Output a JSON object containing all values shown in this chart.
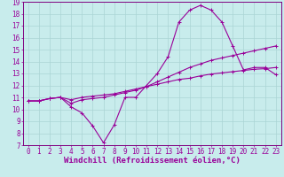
{
  "xlabel": "Windchill (Refroidissement éolien,°C)",
  "background_color": "#c8ecec",
  "line_color": "#990099",
  "grid_color": "#aad4d4",
  "xlim": [
    -0.5,
    23.5
  ],
  "ylim": [
    7,
    19
  ],
  "xticks": [
    0,
    1,
    2,
    3,
    4,
    5,
    6,
    7,
    8,
    9,
    10,
    11,
    12,
    13,
    14,
    15,
    16,
    17,
    18,
    19,
    20,
    21,
    22,
    23
  ],
  "yticks": [
    7,
    8,
    9,
    10,
    11,
    12,
    13,
    14,
    15,
    16,
    17,
    18,
    19
  ],
  "curve1_x": [
    0,
    1,
    2,
    3,
    4,
    5,
    6,
    7,
    8,
    9,
    10,
    11,
    12,
    13,
    14,
    15,
    16,
    17,
    18,
    19,
    20,
    21,
    22,
    23
  ],
  "curve1_y": [
    10.7,
    10.7,
    10.9,
    11.0,
    10.2,
    9.7,
    8.6,
    7.2,
    8.7,
    11.0,
    11.0,
    12.0,
    13.0,
    14.4,
    17.3,
    18.3,
    18.7,
    18.3,
    17.3,
    15.3,
    13.3,
    13.5,
    13.5,
    12.9
  ],
  "curve2_x": [
    0,
    1,
    2,
    3,
    4,
    5,
    6,
    7,
    8,
    9,
    10,
    11,
    12,
    13,
    14,
    15,
    16,
    17,
    18,
    19,
    20,
    21,
    22,
    23
  ],
  "curve2_y": [
    10.7,
    10.7,
    10.9,
    11.0,
    10.5,
    10.8,
    10.9,
    11.0,
    11.2,
    11.4,
    11.6,
    11.9,
    12.3,
    12.7,
    13.1,
    13.5,
    13.8,
    14.1,
    14.3,
    14.5,
    14.7,
    14.9,
    15.1,
    15.3
  ],
  "curve3_x": [
    0,
    1,
    2,
    3,
    4,
    5,
    6,
    7,
    8,
    9,
    10,
    11,
    12,
    13,
    14,
    15,
    16,
    17,
    18,
    19,
    20,
    21,
    22,
    23
  ],
  "curve3_y": [
    10.7,
    10.7,
    10.9,
    11.0,
    10.8,
    11.0,
    11.1,
    11.2,
    11.3,
    11.5,
    11.7,
    11.9,
    12.1,
    12.3,
    12.5,
    12.6,
    12.8,
    12.95,
    13.05,
    13.15,
    13.25,
    13.35,
    13.4,
    13.5
  ],
  "marker": "+",
  "markersize": 3,
  "linewidth": 0.8,
  "tick_fontsize": 5.5,
  "label_fontsize": 6.5,
  "spine_color": "#800080"
}
